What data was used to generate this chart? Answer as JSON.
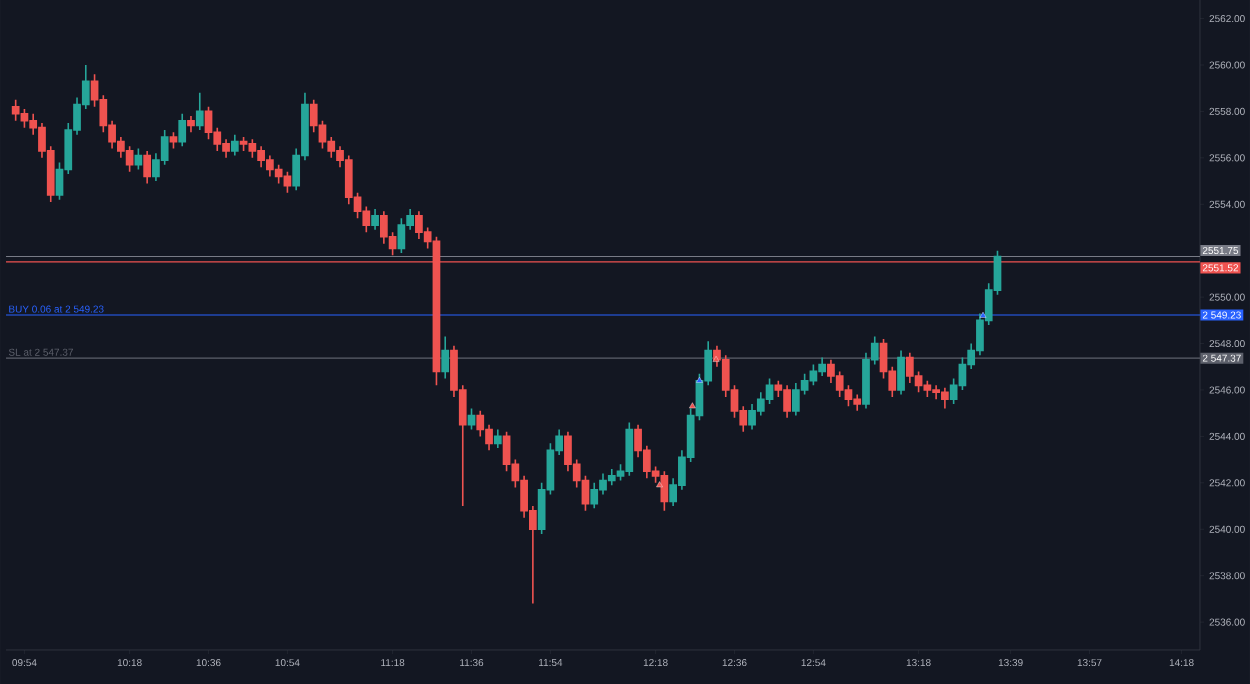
{
  "chart_data": {
    "type": "candlestick",
    "colors": [
      "#ef5350",
      "#ef5350",
      "#ef5350",
      "#ef5350",
      "#ef5350",
      "#26a69a",
      "#26a69a",
      "#26a69a",
      "#26a69a",
      "#ef5350",
      "#ef5350",
      "#ef5350",
      "#ef5350",
      "#ef5350",
      "#26a69a",
      "#ef5350",
      "#26a69a",
      "#26a69a",
      "#ef5350",
      "#26a69a",
      "#ef5350",
      "#26a69a",
      "#ef5350",
      "#ef5350",
      "#ef5350",
      "#26a69a",
      "#ef5350",
      "#ef5350",
      "#ef5350",
      "#ef5350",
      "#ef5350",
      "#ef5350",
      "#26a69a",
      "#26a69a",
      "#ef5350",
      "#ef5350",
      "#ef5350",
      "#ef5350",
      "#ef5350",
      "#ef5350",
      "#ef5350",
      "#26a69a",
      "#ef5350",
      "#ef5350",
      "#26a69a",
      "#26a69a",
      "#ef5350",
      "#ef5350",
      "#ef5350",
      "#26a69a",
      "#ef5350",
      "#ef5350",
      "#26a69a",
      "#ef5350",
      "#ef5350",
      "#26a69a",
      "#ef5350",
      "#ef5350",
      "#ef5350",
      "#ef5350",
      "#26a69a",
      "#26a69a",
      "#26a69a",
      "#ef5350",
      "#ef5350",
      "#ef5350",
      "#26a69a",
      "#26a69a",
      "#26a69a",
      "#26a69a",
      "#26a69a",
      "#ef5350",
      "#ef5350",
      "#ef5350",
      "#ef5350",
      "#26a69a",
      "#26a69a",
      "#26a69a",
      "#26a69a",
      "#26a69a",
      "#ef5350",
      "#ef5350",
      "#ef5350",
      "#ef5350",
      "#26a69a",
      "#26a69a",
      "#26a69a",
      "#ef5350",
      "#ef5350",
      "#26a69a",
      "#26a69a",
      "#26a69a",
      "#26a69a",
      "#ef5350",
      "#ef5350",
      "#ef5350",
      "#ef5350",
      "#26a69a",
      "#26a69a",
      "#ef5350",
      "#ef5350",
      "#26a69a",
      "#ef5350",
      "#ef5350",
      "#ef5350",
      "#ef5350",
      "#ef5350",
      "#26a69a",
      "#26a69a",
      "#26a69a",
      "#26a69a",
      "#26a69a",
      "#26a69a"
    ],
    "x": [
      9.8667,
      9.9,
      9.9333,
      9.9667,
      10,
      10.0333,
      10.0667,
      10.1,
      10.1333,
      10.1667,
      10.2,
      10.2333,
      10.2667,
      10.3,
      10.3333,
      10.3667,
      10.4,
      10.4333,
      10.4667,
      10.5,
      10.5333,
      10.5667,
      10.6,
      10.6333,
      10.6667,
      10.7,
      10.7333,
      10.7667,
      10.8,
      10.8333,
      10.8667,
      10.9,
      10.9333,
      10.9667,
      11,
      11.0333,
      11.0667,
      11.1,
      11.1333,
      11.1667,
      11.2,
      11.2333,
      11.2667,
      11.3,
      11.3333,
      11.3667,
      11.4,
      11.4333,
      11.4667,
      11.5,
      11.5333,
      11.5667,
      11.6,
      11.6333,
      11.6667,
      11.7,
      11.7333,
      11.7667,
      11.8,
      11.8333,
      11.8667,
      11.9,
      11.9333,
      11.9667,
      12,
      12.0333,
      12.0667,
      12.1,
      12.1333,
      12.1667,
      12.2,
      12.2333,
      12.2667,
      12.3,
      12.3333,
      12.3667,
      12.4,
      12.4333,
      12.4667,
      12.5,
      12.5333,
      12.5667,
      12.6,
      12.6333,
      12.6667,
      12.7,
      12.7333,
      12.7667,
      12.8,
      12.8333,
      12.8667,
      12.9,
      12.9333,
      12.9667,
      13,
      13.0333,
      13.0667,
      13.1,
      13.1333,
      13.1667,
      13.2,
      13.2333,
      13.2667,
      13.3,
      13.3333,
      13.3667,
      13.4,
      13.4333,
      13.4667,
      13.5,
      13.5333,
      13.5667,
      13.6
    ],
    "ohlc": [
      [
        2558.2,
        2558.5,
        2557.6,
        2557.9
      ],
      [
        2557.9,
        2558.1,
        2557.3,
        2557.6
      ],
      [
        2557.6,
        2557.9,
        2557.0,
        2557.3
      ],
      [
        2557.3,
        2557.5,
        2556.0,
        2556.3
      ],
      [
        2556.3,
        2556.5,
        2554.1,
        2554.4
      ],
      [
        2554.4,
        2555.8,
        2554.2,
        2555.5
      ],
      [
        2555.5,
        2557.5,
        2555.3,
        2557.2
      ],
      [
        2557.2,
        2558.6,
        2557.0,
        2558.3
      ],
      [
        2558.3,
        2560.0,
        2558.1,
        2559.3
      ],
      [
        2559.3,
        2559.6,
        2558.2,
        2558.5
      ],
      [
        2558.5,
        2558.7,
        2557.1,
        2557.4
      ],
      [
        2557.4,
        2557.6,
        2556.4,
        2556.7
      ],
      [
        2556.7,
        2556.9,
        2556.0,
        2556.3
      ],
      [
        2556.3,
        2556.5,
        2555.4,
        2555.7
      ],
      [
        2555.7,
        2556.4,
        2555.5,
        2556.1
      ],
      [
        2556.1,
        2556.3,
        2554.9,
        2555.2
      ],
      [
        2555.2,
        2556.2,
        2555.0,
        2555.9
      ],
      [
        2555.9,
        2557.2,
        2555.7,
        2556.9
      ],
      [
        2556.9,
        2557.1,
        2556.4,
        2556.7
      ],
      [
        2556.7,
        2557.9,
        2556.5,
        2557.6
      ],
      [
        2557.6,
        2557.8,
        2557.1,
        2557.4
      ],
      [
        2557.4,
        2558.8,
        2557.2,
        2558.0
      ],
      [
        2558.0,
        2558.2,
        2556.8,
        2557.1
      ],
      [
        2557.1,
        2557.3,
        2556.3,
        2556.6
      ],
      [
        2556.6,
        2556.8,
        2556.0,
        2556.3
      ],
      [
        2556.3,
        2557.0,
        2556.1,
        2556.7
      ],
      [
        2556.7,
        2556.9,
        2556.3,
        2556.6
      ],
      [
        2556.6,
        2556.8,
        2556.0,
        2556.3
      ],
      [
        2556.3,
        2556.5,
        2555.6,
        2555.9
      ],
      [
        2555.9,
        2556.1,
        2555.2,
        2555.5
      ],
      [
        2555.5,
        2555.7,
        2554.9,
        2555.2
      ],
      [
        2555.2,
        2555.4,
        2554.5,
        2554.8
      ],
      [
        2554.8,
        2556.4,
        2554.6,
        2556.1
      ],
      [
        2556.1,
        2558.8,
        2555.9,
        2558.3
      ],
      [
        2558.3,
        2558.5,
        2557.1,
        2557.4
      ],
      [
        2557.4,
        2557.6,
        2556.4,
        2556.7
      ],
      [
        2556.7,
        2556.9,
        2556.0,
        2556.3
      ],
      [
        2556.3,
        2556.5,
        2555.6,
        2555.9
      ],
      [
        2555.9,
        2556.1,
        2554.0,
        2554.3
      ],
      [
        2554.3,
        2554.5,
        2553.4,
        2553.7
      ],
      [
        2553.7,
        2553.9,
        2552.8,
        2553.1
      ],
      [
        2553.1,
        2553.8,
        2552.9,
        2553.5
      ],
      [
        2553.5,
        2553.7,
        2552.3,
        2552.6
      ],
      [
        2552.6,
        2552.8,
        2551.8,
        2552.1
      ],
      [
        2552.1,
        2553.4,
        2551.9,
        2553.1
      ],
      [
        2553.1,
        2553.8,
        2552.9,
        2553.5
      ],
      [
        2553.5,
        2553.7,
        2552.5,
        2552.8
      ],
      [
        2552.8,
        2553.0,
        2552.1,
        2552.4
      ],
      [
        2552.4,
        2552.6,
        2546.2,
        2546.8
      ],
      [
        2546.8,
        2548.3,
        2546.5,
        2547.7
      ],
      [
        2547.7,
        2547.9,
        2545.7,
        2546.0
      ],
      [
        2546.0,
        2546.2,
        2541.0,
        2544.5
      ],
      [
        2544.5,
        2545.2,
        2544.3,
        2544.9
      ],
      [
        2544.9,
        2545.1,
        2544.0,
        2544.3
      ],
      [
        2544.3,
        2544.5,
        2543.4,
        2543.7
      ],
      [
        2543.7,
        2544.3,
        2543.5,
        2544.0
      ],
      [
        2544.0,
        2544.2,
        2542.5,
        2542.8
      ],
      [
        2542.8,
        2543.0,
        2541.8,
        2542.1
      ],
      [
        2542.1,
        2542.3,
        2540.5,
        2540.8
      ],
      [
        2540.8,
        2541.0,
        2536.8,
        2540.0
      ],
      [
        2540.0,
        2542.0,
        2539.8,
        2541.7
      ],
      [
        2541.7,
        2543.7,
        2541.5,
        2543.4
      ],
      [
        2543.4,
        2544.3,
        2543.2,
        2544.0
      ],
      [
        2544.0,
        2544.2,
        2542.5,
        2542.8
      ],
      [
        2542.8,
        2543.0,
        2541.8,
        2542.1
      ],
      [
        2542.1,
        2542.3,
        2540.8,
        2541.1
      ],
      [
        2541.1,
        2542.0,
        2540.9,
        2541.7
      ],
      [
        2541.7,
        2542.4,
        2541.5,
        2542.1
      ],
      [
        2542.1,
        2542.6,
        2541.9,
        2542.3
      ],
      [
        2542.3,
        2542.8,
        2542.1,
        2542.5
      ],
      [
        2542.5,
        2544.6,
        2542.3,
        2544.3
      ],
      [
        2544.3,
        2544.5,
        2543.1,
        2543.4
      ],
      [
        2543.4,
        2543.6,
        2542.2,
        2542.5
      ],
      [
        2542.5,
        2542.7,
        2542.0,
        2542.3
      ],
      [
        2542.3,
        2542.5,
        2540.8,
        2541.2
      ],
      [
        2541.2,
        2542.2,
        2541.0,
        2541.9
      ],
      [
        2541.9,
        2543.4,
        2541.7,
        2543.1
      ],
      [
        2543.1,
        2545.2,
        2542.9,
        2544.9
      ],
      [
        2544.9,
        2546.7,
        2544.7,
        2546.4
      ],
      [
        2546.4,
        2548.1,
        2546.2,
        2547.7
      ],
      [
        2547.7,
        2547.9,
        2547.0,
        2547.3
      ],
      [
        2547.3,
        2547.5,
        2545.7,
        2546.0
      ],
      [
        2546.0,
        2546.2,
        2544.8,
        2545.1
      ],
      [
        2545.1,
        2545.3,
        2544.2,
        2544.5
      ],
      [
        2544.5,
        2545.4,
        2544.3,
        2545.1
      ],
      [
        2545.1,
        2545.9,
        2544.9,
        2545.6
      ],
      [
        2545.6,
        2546.5,
        2545.4,
        2546.2
      ],
      [
        2546.2,
        2546.4,
        2545.7,
        2546.0
      ],
      [
        2546.0,
        2546.2,
        2544.8,
        2545.1
      ],
      [
        2545.1,
        2546.3,
        2544.9,
        2546.0
      ],
      [
        2546.0,
        2546.7,
        2545.8,
        2546.4
      ],
      [
        2546.4,
        2547.1,
        2546.2,
        2546.8
      ],
      [
        2546.8,
        2547.4,
        2546.6,
        2547.1
      ],
      [
        2547.1,
        2547.3,
        2546.3,
        2546.6
      ],
      [
        2546.6,
        2546.8,
        2545.7,
        2546.0
      ],
      [
        2546.0,
        2546.2,
        2545.3,
        2545.6
      ],
      [
        2545.6,
        2545.8,
        2545.1,
        2545.4
      ],
      [
        2545.4,
        2547.6,
        2545.2,
        2547.3
      ],
      [
        2547.3,
        2548.3,
        2547.1,
        2548.0
      ],
      [
        2548.0,
        2548.2,
        2546.5,
        2546.8
      ],
      [
        2546.8,
        2547.0,
        2545.7,
        2546.0
      ],
      [
        2546.0,
        2547.7,
        2545.8,
        2547.4
      ],
      [
        2547.4,
        2547.6,
        2546.3,
        2546.6
      ],
      [
        2546.6,
        2546.8,
        2545.9,
        2546.2
      ],
      [
        2546.2,
        2546.4,
        2545.7,
        2546.0
      ],
      [
        2546.0,
        2546.2,
        2545.6,
        2545.9
      ],
      [
        2545.9,
        2546.1,
        2545.2,
        2545.6
      ],
      [
        2545.6,
        2546.5,
        2545.4,
        2546.2
      ],
      [
        2546.2,
        2547.4,
        2546.0,
        2547.1
      ],
      [
        2547.1,
        2548.0,
        2546.9,
        2547.7
      ],
      [
        2547.7,
        2549.3,
        2547.5,
        2549.0
      ],
      [
        2549.0,
        2550.6,
        2548.8,
        2550.3
      ],
      [
        2550.3,
        2552.0,
        2550.1,
        2551.75
      ]
    ],
    "series": [
      {
        "type": "scatter",
        "marker": "triangle",
        "x": [
          12.315,
          12.44,
          12.4667,
          12.53,
          13.545
        ],
        "values": [
          2541.9,
          2545.3,
          2546.4,
          2547.3,
          2549.2
        ],
        "colors": [
          "#ef5350",
          "#ef5350",
          "#2962ff",
          "#ef5350",
          "#2962ff"
        ]
      }
    ],
    "xlim": [
      9.83,
      14.37
    ],
    "ylim": [
      2534.8,
      2562.8
    ],
    "xticks": [
      {
        "value": 9.9,
        "label": "09:54"
      },
      {
        "value": 10.3,
        "label": "10:18"
      },
      {
        "value": 10.6,
        "label": "10:36"
      },
      {
        "value": 10.9,
        "label": "10:54"
      },
      {
        "value": 11.3,
        "label": "11:18"
      },
      {
        "value": 11.6,
        "label": "11:36"
      },
      {
        "value": 11.9,
        "label": "11:54"
      },
      {
        "value": 12.3,
        "label": "12:18"
      },
      {
        "value": 12.6,
        "label": "12:36"
      },
      {
        "value": 12.9,
        "label": "12:54"
      },
      {
        "value": 13.3,
        "label": "13:18"
      },
      {
        "value": 13.65,
        "label": "13:39"
      },
      {
        "value": 13.95,
        "label": "13:57"
      },
      {
        "value": 14.3,
        "label": "14:18"
      }
    ],
    "yticks": [
      {
        "value": 2536,
        "label": "2536.00"
      },
      {
        "value": 2538,
        "label": "2538.00"
      },
      {
        "value": 2540,
        "label": "2540.00"
      },
      {
        "value": 2542,
        "label": "2542.00"
      },
      {
        "value": 2544,
        "label": "2544.00"
      },
      {
        "value": 2546,
        "label": "2546.00"
      },
      {
        "value": 2548,
        "label": "2548.00"
      },
      {
        "value": 2550,
        "label": "2550.00"
      },
      {
        "value": 2552,
        "label": null
      },
      {
        "value": 2554,
        "label": "2554.00"
      },
      {
        "value": 2556,
        "label": "2556.00"
      },
      {
        "value": 2558,
        "label": "2558.00"
      },
      {
        "value": 2560,
        "label": "2560.00"
      },
      {
        "value": 2562,
        "label": "2562.00"
      }
    ],
    "ref_lines": [
      {
        "axis": "y",
        "value": 2551.75,
        "label": "2551.75",
        "color": "#787b86"
      },
      {
        "axis": "y",
        "value": 2551.52,
        "label": "2551.52",
        "color": "#ef5350"
      },
      {
        "axis": "y",
        "value": 2549.23,
        "label": "2 549.23",
        "color": "#2962ff"
      },
      {
        "axis": "y",
        "value": 2547.37,
        "label": "2 547.37",
        "color": "#5d606b"
      }
    ],
    "annotations": [
      {
        "text": "BUY 0.06 at 2 549.23",
        "x": 9.83,
        "y": 2549.23
      },
      {
        "text": "SL at 2 547.37",
        "x": 9.83,
        "y": 2547.37
      }
    ]
  }
}
